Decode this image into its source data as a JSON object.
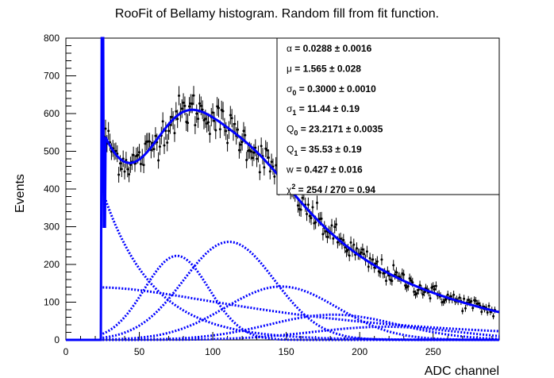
{
  "chart_data": {
    "type": "scatter",
    "title": "RooFit of Bellamy histogram. Random fill from fit function.",
    "xlabel": "ADC channel",
    "ylabel": "Events",
    "xlim": [
      0,
      295
    ],
    "ylim": [
      0,
      800
    ],
    "x_ticks": [
      "0",
      "50",
      "100",
      "150",
      "200",
      "250"
    ],
    "y_ticks": [
      "0",
      "100",
      "200",
      "300",
      "400",
      "500",
      "600",
      "700",
      "800"
    ],
    "colors": {
      "fit": "#0000ff",
      "data": "#000000"
    },
    "fit_params": {
      "alpha": 0.0288,
      "mu": 1.565,
      "sigma0": 0.3,
      "sigma1": 11.44,
      "Q0": 23.2171,
      "Q1": 35.53,
      "w": 0.427,
      "pedestal_peak_height": 800
    },
    "stats": [
      {
        "sym": "α",
        "sub": "",
        "sup": "",
        "text": " =  0.0288 ± 0.0016"
      },
      {
        "sym": "μ",
        "sub": "",
        "sup": "",
        "text": " =  1.565 ± 0.028"
      },
      {
        "sym": "σ",
        "sub": "0",
        "sup": "",
        "text": " =  0.3000 ± 0.0010"
      },
      {
        "sym": "σ",
        "sub": "1",
        "sup": "",
        "text": " =  11.44 ± 0.19"
      },
      {
        "sym": "Q",
        "sub": "0",
        "sup": "",
        "text": " =  23.2171 ± 0.0035"
      },
      {
        "sym": "Q",
        "sub": "1",
        "sup": "",
        "text": " =  35.53 ± 0.19"
      },
      {
        "sym": "w",
        "sub": "",
        "sup": "",
        "text": " =  0.427 ± 0.016"
      },
      {
        "sym": "χ",
        "sub": "",
        "sup": "2",
        "text": " =  254 / 270 = 0.94"
      }
    ]
  }
}
